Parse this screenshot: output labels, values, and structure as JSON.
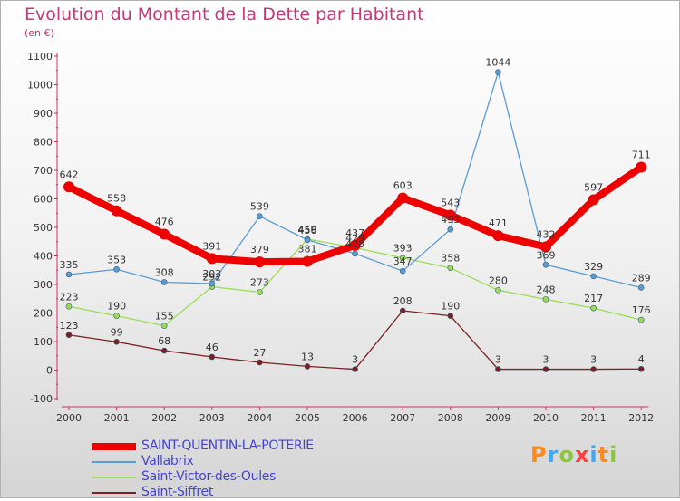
{
  "header": {
    "title": "Evolution du Montant de la Dette par Habitant",
    "subtitle": "(en €)"
  },
  "logo": {
    "text": "Proxiti"
  },
  "chart_data": {
    "type": "line",
    "title": "Evolution du Montant de la Dette par Habitant",
    "ylabel": "(en €)",
    "xlabel": "",
    "x": [
      "2000",
      "2001",
      "2002",
      "2003",
      "2004",
      "2005",
      "2006",
      "2007",
      "2008",
      "2009",
      "2010",
      "2011",
      "2012"
    ],
    "ylim": [
      -100,
      1100
    ],
    "yticks": [
      -100,
      0,
      100,
      200,
      300,
      400,
      500,
      600,
      700,
      800,
      900,
      1000,
      1100
    ],
    "grid": false,
    "legend_position": "bottom-left",
    "series": [
      {
        "name": "SAINT-QUENTIN-LA-POTERIE",
        "color": "#ee0000",
        "values": [
          642,
          558,
          476,
          391,
          379,
          381,
          437,
          603,
          543,
          471,
          432,
          597,
          711
        ]
      },
      {
        "name": "Vallabrix",
        "color": "#5b9bd0",
        "values": [
          335,
          353,
          308,
          303,
          539,
          456,
          408,
          347,
          493,
          1044,
          369,
          329,
          289
        ]
      },
      {
        "name": "Saint-Victor-des-Oules",
        "color": "#99dd55",
        "values": [
          223,
          190,
          155,
          292,
          273,
          459,
          429,
          393,
          358,
          280,
          248,
          217,
          176
        ]
      },
      {
        "name": "Saint-Siffret",
        "color": "#7a2020",
        "values": [
          123,
          99,
          68,
          46,
          27,
          13,
          3,
          208,
          190,
          3,
          3,
          3,
          4
        ]
      }
    ]
  }
}
